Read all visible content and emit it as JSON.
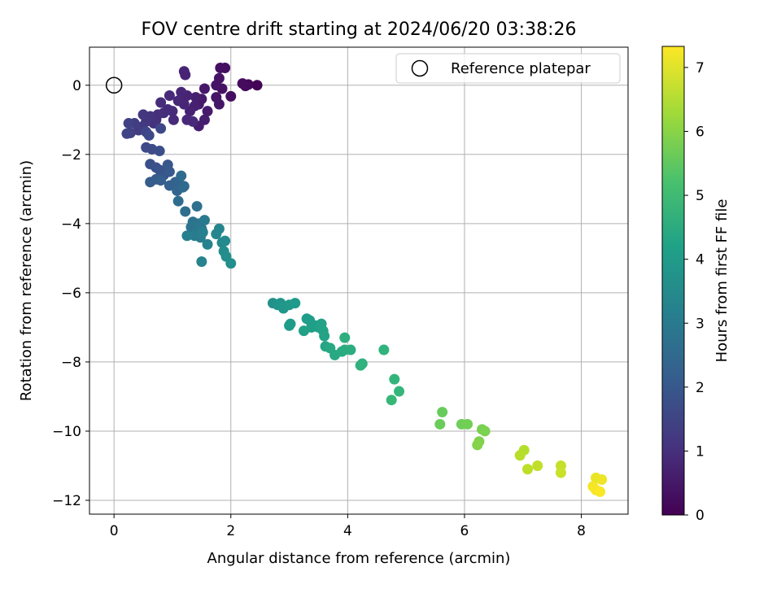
{
  "chart_data": {
    "type": "scatter",
    "title": "FOV centre drift starting at 2024/06/20 03:38:26",
    "xlabel": "Angular distance from reference (arcmin)",
    "ylabel": "Rotation from reference (arcmin)",
    "xlim": [
      -0.42,
      8.8
    ],
    "ylim": [
      -12.4,
      1.1
    ],
    "xticks": [
      0,
      2,
      4,
      6,
      8
    ],
    "yticks": [
      0,
      -2,
      -4,
      -6,
      -8,
      -10,
      -12
    ],
    "grid": true,
    "legend": {
      "position": "top-right",
      "entries": [
        "Reference platepar"
      ]
    },
    "colorbar": {
      "label": "Hours from first FF file",
      "range": [
        0,
        7.33
      ],
      "ticks": [
        0,
        1,
        2,
        3,
        4,
        5,
        6,
        7
      ],
      "colormap": "viridis"
    },
    "reference_point": {
      "x": 0,
      "y": 0
    },
    "series": [
      {
        "points": [
          [
            2.45,
            0.0,
            0.05
          ],
          [
            2.3,
            0.02,
            0.1
          ],
          [
            2.25,
            -0.02,
            0.15
          ],
          [
            2.2,
            0.05,
            0.2
          ],
          [
            2.0,
            -0.32,
            0.25
          ],
          [
            1.9,
            0.5,
            0.3
          ],
          [
            1.82,
            0.5,
            0.32
          ],
          [
            1.85,
            -0.1,
            0.35
          ],
          [
            1.8,
            0.2,
            0.38
          ],
          [
            1.75,
            0.0,
            0.4
          ],
          [
            1.75,
            -0.35,
            0.42
          ],
          [
            1.8,
            -0.55,
            0.45
          ],
          [
            1.55,
            -0.1,
            0.48
          ],
          [
            1.5,
            -0.4,
            0.5
          ],
          [
            1.45,
            -0.55,
            0.52
          ],
          [
            1.6,
            -0.75,
            0.55
          ],
          [
            1.55,
            -1.0,
            0.58
          ],
          [
            1.45,
            -1.18,
            0.6
          ],
          [
            1.4,
            -0.35,
            0.62
          ],
          [
            1.38,
            -0.6,
            0.65
          ],
          [
            1.3,
            -0.75,
            0.68
          ],
          [
            1.25,
            -0.3,
            0.7
          ],
          [
            1.22,
            0.3,
            0.72
          ],
          [
            1.2,
            0.4,
            0.74
          ],
          [
            1.2,
            -0.55,
            0.76
          ],
          [
            1.15,
            -0.2,
            0.78
          ],
          [
            1.1,
            -0.45,
            0.8
          ],
          [
            1.25,
            -1.0,
            0.82
          ],
          [
            1.35,
            -1.05,
            0.84
          ],
          [
            1.02,
            -1.0,
            0.86
          ],
          [
            1.0,
            -0.75,
            0.88
          ],
          [
            0.95,
            -0.3,
            0.9
          ],
          [
            0.92,
            -0.7,
            0.92
          ],
          [
            0.85,
            -0.8,
            0.94
          ],
          [
            0.8,
            -0.5,
            0.96
          ],
          [
            0.75,
            -0.85,
            0.98
          ],
          [
            0.72,
            -1.0,
            1.0
          ],
          [
            0.68,
            -1.1,
            1.05
          ],
          [
            0.62,
            -0.9,
            1.1
          ],
          [
            0.55,
            -1.05,
            1.15
          ],
          [
            0.5,
            -0.85,
            1.2
          ],
          [
            0.48,
            -1.2,
            1.25
          ],
          [
            0.42,
            -1.3,
            1.3
          ],
          [
            0.35,
            -1.1,
            1.35
          ],
          [
            0.28,
            -1.38,
            1.4
          ],
          [
            0.25,
            -1.1,
            1.45
          ],
          [
            0.22,
            -1.4,
            1.5
          ],
          [
            0.55,
            -1.35,
            1.55
          ],
          [
            0.8,
            -1.25,
            1.6
          ],
          [
            0.6,
            -1.45,
            1.62
          ],
          [
            0.55,
            -1.8,
            1.65
          ],
          [
            0.65,
            -1.85,
            1.7
          ],
          [
            0.78,
            -1.9,
            1.75
          ],
          [
            0.62,
            -2.28,
            1.8
          ],
          [
            0.72,
            -2.38,
            1.85
          ],
          [
            0.78,
            -2.45,
            1.9
          ],
          [
            0.85,
            -2.6,
            1.95
          ],
          [
            0.92,
            -2.3,
            2.0
          ],
          [
            0.95,
            -2.5,
            2.05
          ],
          [
            0.72,
            -2.72,
            2.1
          ],
          [
            0.62,
            -2.8,
            2.15
          ],
          [
            0.8,
            -2.75,
            2.2
          ],
          [
            0.95,
            -2.9,
            2.25
          ],
          [
            1.05,
            -2.8,
            2.3
          ],
          [
            1.12,
            -2.85,
            2.35
          ],
          [
            1.08,
            -3.05,
            2.4
          ],
          [
            1.18,
            -2.95,
            2.45
          ],
          [
            1.15,
            -2.62,
            2.5
          ],
          [
            1.2,
            -2.92,
            2.55
          ],
          [
            1.1,
            -3.35,
            2.6
          ],
          [
            1.22,
            -3.65,
            2.65
          ],
          [
            1.42,
            -3.5,
            2.7
          ],
          [
            1.35,
            -3.95,
            2.75
          ],
          [
            1.32,
            -4.1,
            2.8
          ],
          [
            1.45,
            -4.0,
            2.85
          ],
          [
            1.5,
            -4.15,
            2.9
          ],
          [
            1.42,
            -4.25,
            2.95
          ],
          [
            1.55,
            -3.9,
            3.0
          ],
          [
            1.38,
            -4.35,
            3.05
          ],
          [
            1.48,
            -4.4,
            3.1
          ],
          [
            1.25,
            -4.35,
            3.15
          ],
          [
            1.52,
            -4.25,
            3.2
          ],
          [
            1.6,
            -4.6,
            3.25
          ],
          [
            1.5,
            -5.1,
            3.3
          ],
          [
            1.8,
            -4.15,
            3.35
          ],
          [
            1.75,
            -4.3,
            3.4
          ],
          [
            1.85,
            -4.55,
            3.45
          ],
          [
            1.9,
            -4.5,
            3.5
          ],
          [
            1.88,
            -4.8,
            3.55
          ],
          [
            1.92,
            -4.95,
            3.6
          ],
          [
            2.0,
            -5.15,
            3.65
          ],
          [
            2.72,
            -6.3,
            3.7
          ],
          [
            2.8,
            -6.35,
            3.75
          ],
          [
            2.85,
            -6.3,
            3.8
          ],
          [
            2.9,
            -6.45,
            3.85
          ],
          [
            3.0,
            -6.35,
            3.9
          ],
          [
            3.1,
            -6.3,
            3.95
          ],
          [
            3.02,
            -6.9,
            4.0
          ],
          [
            3.0,
            -6.95,
            4.02
          ],
          [
            3.3,
            -6.75,
            4.05
          ],
          [
            3.35,
            -6.8,
            4.08
          ],
          [
            3.38,
            -7.0,
            4.1
          ],
          [
            3.45,
            -6.95,
            4.12
          ],
          [
            3.5,
            -7.0,
            4.15
          ],
          [
            3.25,
            -7.1,
            4.18
          ],
          [
            3.55,
            -6.9,
            4.2
          ],
          [
            3.58,
            -7.1,
            4.22
          ],
          [
            3.6,
            -7.25,
            4.25
          ],
          [
            3.62,
            -7.55,
            4.3
          ],
          [
            3.7,
            -7.6,
            4.35
          ],
          [
            3.78,
            -7.8,
            4.4
          ],
          [
            3.9,
            -7.7,
            4.45
          ],
          [
            3.95,
            -7.65,
            4.5
          ],
          [
            4.05,
            -7.65,
            4.55
          ],
          [
            3.95,
            -7.3,
            4.6
          ],
          [
            4.25,
            -8.05,
            4.65
          ],
          [
            4.22,
            -8.1,
            4.7
          ],
          [
            4.62,
            -7.65,
            4.75
          ],
          [
            4.8,
            -8.5,
            4.8
          ],
          [
            4.88,
            -8.85,
            4.85
          ],
          [
            4.75,
            -9.1,
            4.9
          ],
          [
            5.62,
            -9.45,
            5.6
          ],
          [
            5.58,
            -9.8,
            5.65
          ],
          [
            5.95,
            -9.8,
            5.7
          ],
          [
            6.05,
            -9.8,
            5.75
          ],
          [
            6.3,
            -9.95,
            5.8
          ],
          [
            6.35,
            -10.0,
            5.85
          ],
          [
            6.25,
            -10.3,
            5.9
          ],
          [
            6.22,
            -10.4,
            5.95
          ],
          [
            7.02,
            -10.55,
            6.5
          ],
          [
            6.95,
            -10.7,
            6.55
          ],
          [
            7.08,
            -11.1,
            6.6
          ],
          [
            7.25,
            -11.0,
            6.65
          ],
          [
            7.65,
            -11.0,
            6.7
          ],
          [
            7.65,
            -11.2,
            6.75
          ],
          [
            8.25,
            -11.35,
            7.1
          ],
          [
            8.35,
            -11.4,
            7.15
          ],
          [
            8.2,
            -11.6,
            7.2
          ],
          [
            8.25,
            -11.7,
            7.25
          ],
          [
            8.32,
            -11.75,
            7.3
          ]
        ]
      }
    ]
  }
}
